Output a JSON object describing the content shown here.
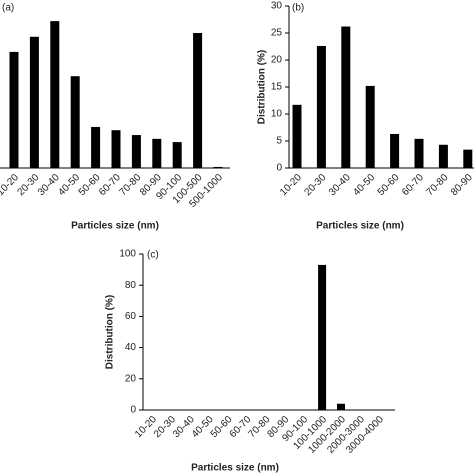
{
  "chart_data": [
    {
      "type": "bar",
      "title": "(a)",
      "x_label": "Particles size (nm)",
      "categories": [
        "10-20",
        "20-30",
        "30-40",
        "40-50",
        "50-60",
        "60-70",
        "70-80",
        "80-90",
        "90-100",
        "100-500",
        "500-1000"
      ],
      "values": [
        21.5,
        24.3,
        27.2,
        17,
        7.6,
        7,
        6.1,
        5.4,
        4.8,
        25,
        0.2
      ],
      "color": "#000000",
      "ylim": [
        0,
        30
      ]
    },
    {
      "type": "bar",
      "title": "(b)",
      "x_label": "Particles size (nm)",
      "y_label": "Distribution (%)",
      "categories": [
        "10-20",
        "20-30",
        "30-40",
        "40-50",
        "50-60",
        "60-70",
        "70-80",
        "80-90"
      ],
      "values": [
        11.7,
        22.6,
        26.2,
        15.2,
        6.3,
        5.4,
        4.3,
        3.4
      ],
      "color": "#000000",
      "ylim": [
        0,
        30
      ],
      "yticks": [
        0,
        5,
        10,
        15,
        20,
        25,
        30
      ]
    },
    {
      "type": "bar",
      "title": "(c)",
      "x_label": "Particles size (nm)",
      "y_label": "Distribution (%)",
      "categories": [
        "10-20",
        "20-30",
        "30-40",
        "40-50",
        "50-60",
        "60-70",
        "70-80",
        "80-90",
        "90-100",
        "100-1000",
        "1000-2000",
        "2000-3000",
        "3000-4000"
      ],
      "values": [
        0,
        0,
        0,
        0,
        0,
        0,
        0,
        0,
        0,
        93,
        4,
        0,
        0
      ],
      "color": "#000000",
      "ylim": [
        0,
        100
      ],
      "yticks": [
        0,
        20,
        40,
        60,
        80,
        100
      ]
    }
  ]
}
